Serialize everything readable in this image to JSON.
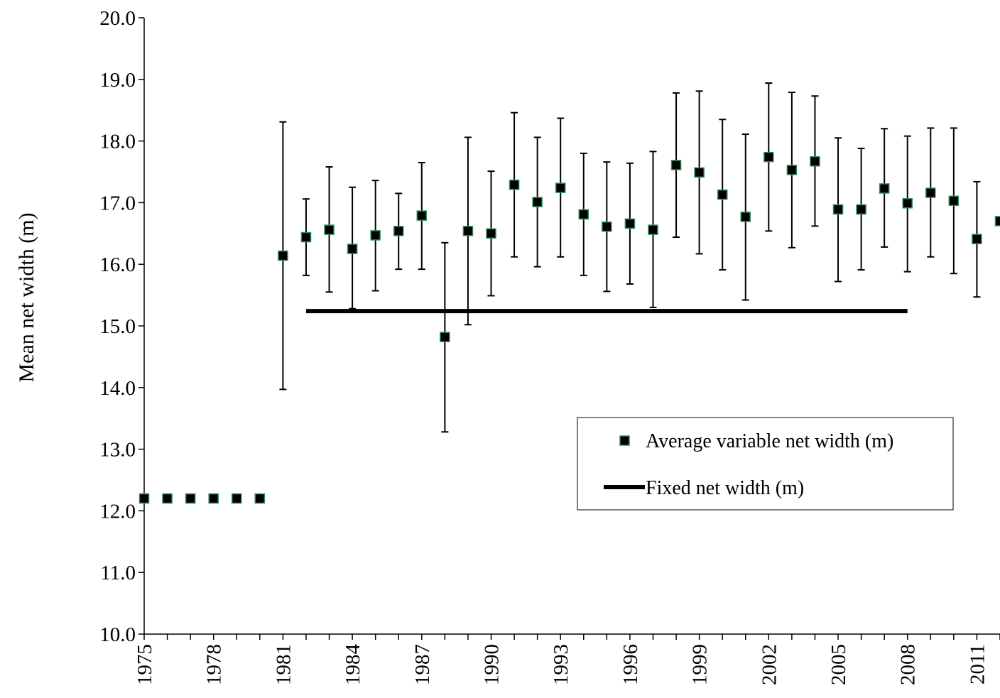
{
  "chart_data": {
    "type": "scatter",
    "ylabel": "Mean net width (m)",
    "xlabel": "",
    "ylim": [
      10.0,
      20.0
    ],
    "xlim": [
      1975,
      2012
    ],
    "yticks": [
      "10.0",
      "11.0",
      "12.0",
      "13.0",
      "14.0",
      "15.0",
      "16.0",
      "17.0",
      "18.0",
      "19.0",
      "20.0"
    ],
    "xticks": [
      "1975",
      "1978",
      "1981",
      "1984",
      "1987",
      "1990",
      "1993",
      "1996",
      "1999",
      "2002",
      "2005",
      "2008",
      "2011"
    ],
    "legend_position": "lower-right",
    "grid": false,
    "colors": {
      "marker_fill": "#000000",
      "marker_edge": "#2e8b57",
      "line": "#000000",
      "axis": "#000000"
    },
    "series": [
      {
        "name": "Average variable net width (m)",
        "type": "scatter",
        "x": [
          1975,
          1976,
          1977,
          1978,
          1979,
          1980,
          1981,
          1982,
          1983,
          1984,
          1985,
          1986,
          1987,
          1988,
          1989,
          1990,
          1991,
          1992,
          1993,
          1994,
          1995,
          1996,
          1997,
          1998,
          1999,
          2000,
          2001,
          2002,
          2003,
          2004,
          2005,
          2006,
          2007,
          2008,
          2009,
          2010,
          2011,
          2012
        ],
        "y": [
          12.2,
          12.2,
          12.2,
          12.2,
          12.2,
          12.2,
          16.14,
          16.44,
          16.56,
          16.25,
          16.47,
          16.54,
          16.79,
          14.82,
          16.54,
          16.5,
          17.29,
          17.01,
          17.24,
          16.81,
          16.61,
          16.66,
          16.56,
          17.61,
          17.49,
          17.13,
          16.77,
          17.74,
          17.53,
          17.67,
          16.89,
          16.89,
          17.23,
          16.99,
          17.16,
          17.03,
          16.41,
          16.7
        ],
        "error_low": [
          null,
          null,
          null,
          null,
          null,
          null,
          13.97,
          15.82,
          15.55,
          15.28,
          15.57,
          15.92,
          15.92,
          13.28,
          15.02,
          15.49,
          16.12,
          15.96,
          16.12,
          15.82,
          15.56,
          15.68,
          15.3,
          16.44,
          16.17,
          15.91,
          15.42,
          16.54,
          16.27,
          16.62,
          15.72,
          15.91,
          16.28,
          15.88,
          16.12,
          15.85,
          15.47,
          null
        ],
        "error_high": [
          null,
          null,
          null,
          null,
          null,
          null,
          18.31,
          17.06,
          17.58,
          17.25,
          17.36,
          17.15,
          17.65,
          16.35,
          18.06,
          17.51,
          18.46,
          18.06,
          18.37,
          17.8,
          17.66,
          17.64,
          17.83,
          18.78,
          18.81,
          18.35,
          18.11,
          18.94,
          18.79,
          18.73,
          18.05,
          17.88,
          18.2,
          18.08,
          18.21,
          18.21,
          17.34,
          null
        ]
      },
      {
        "name": "Fixed net width (m)",
        "type": "line",
        "x": [
          1982,
          2008
        ],
        "y": [
          15.24,
          15.24
        ]
      }
    ]
  }
}
